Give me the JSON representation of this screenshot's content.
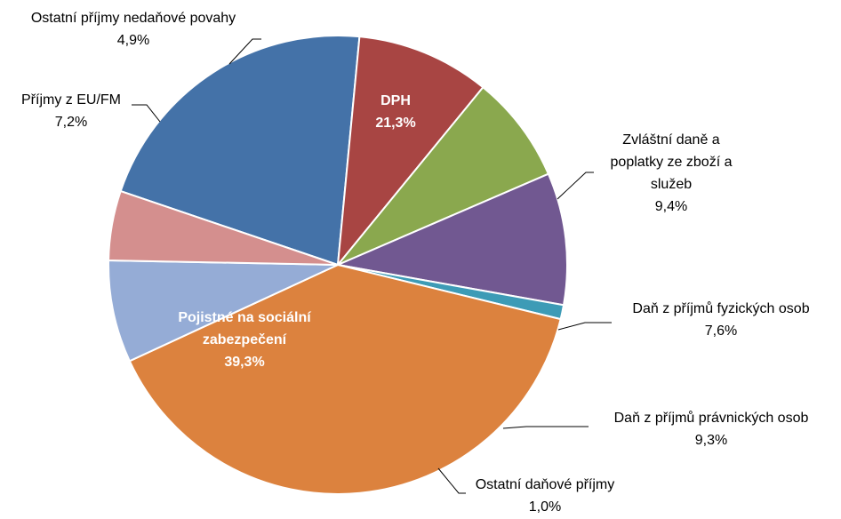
{
  "chart_data": {
    "type": "pie",
    "title": "",
    "colors": {
      "dph": "#4472a8",
      "spotrebni": "#a84543",
      "dpfo": "#8aa84e",
      "dppo": "#715891",
      "ostatni_danove": "#3d9bb6",
      "pojistne": "#dc823e",
      "eu_fm": "#95acd6",
      "nedanove": "#d48f8e"
    },
    "slices": [
      {
        "key": "dph",
        "label_lines": [
          "DPH"
        ],
        "value": 21.3,
        "value_label": "21,3%",
        "label_position": "inside"
      },
      {
        "key": "spotrebni",
        "label_lines": [
          "Zvláštní daně a",
          "poplatky ze zboží a",
          "služeb"
        ],
        "value": 9.4,
        "value_label": "9,4%",
        "label_position": "outside"
      },
      {
        "key": "dpfo",
        "label_lines": [
          "Daň z příjmů fyzických osob"
        ],
        "value": 7.6,
        "value_label": "7,6%",
        "label_position": "outside"
      },
      {
        "key": "dppo",
        "label_lines": [
          "Daň z příjmů právnických osob"
        ],
        "value": 9.3,
        "value_label": "9,3%",
        "label_position": "outside"
      },
      {
        "key": "ostatni_danove",
        "label_lines": [
          "Ostatní daňové příjmy"
        ],
        "value": 1.0,
        "value_label": "1,0%",
        "label_position": "outside"
      },
      {
        "key": "pojistne",
        "label_lines": [
          "Pojistné na sociální",
          "zabezpečení"
        ],
        "value": 39.3,
        "value_label": "39,3%",
        "label_position": "inside"
      },
      {
        "key": "eu_fm",
        "label_lines": [
          "Příjmy z EU/FM"
        ],
        "value": 7.2,
        "value_label": "7,2%",
        "label_position": "outside"
      },
      {
        "key": "nedanove",
        "label_lines": [
          "Ostatní příjmy nedaňové povahy"
        ],
        "value": 4.9,
        "value_label": "4,9%",
        "label_position": "outside"
      }
    ]
  }
}
